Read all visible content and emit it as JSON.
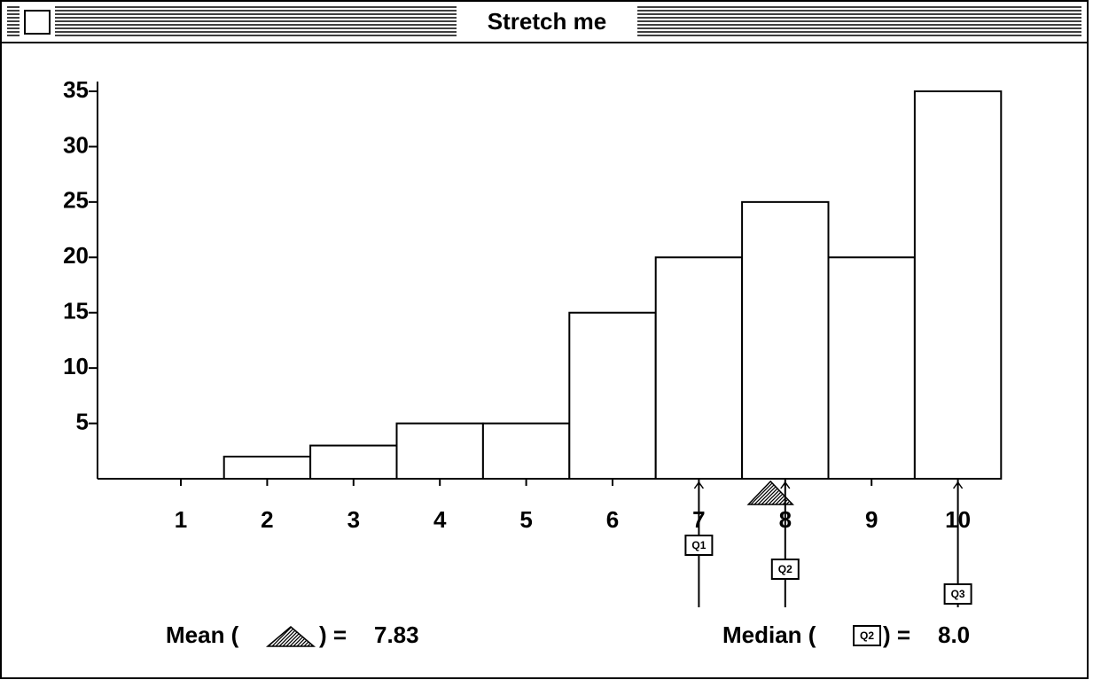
{
  "window": {
    "title": "Stretch me"
  },
  "chart_data": {
    "type": "bar",
    "categories": [
      1,
      2,
      3,
      4,
      5,
      6,
      7,
      8,
      9,
      10
    ],
    "values": [
      0,
      2,
      3,
      5,
      5,
      15,
      20,
      25,
      20,
      35
    ],
    "color": "#ffffff",
    "ylim": [
      0,
      35
    ],
    "yticks": [
      5,
      10,
      15,
      20,
      25,
      30,
      35
    ],
    "annotations": {
      "mean": {
        "value": 7.83,
        "text_before": "Mean (",
        "text_after": ") = "
      },
      "median": {
        "value": 8,
        "label": "8.0",
        "text_before": "Median (",
        "text_after": ") = "
      },
      "quartiles": [
        {
          "name": "Q1",
          "value": 7
        },
        {
          "name": "Q2",
          "value": 8
        },
        {
          "name": "Q3",
          "value": 10
        }
      ]
    }
  }
}
